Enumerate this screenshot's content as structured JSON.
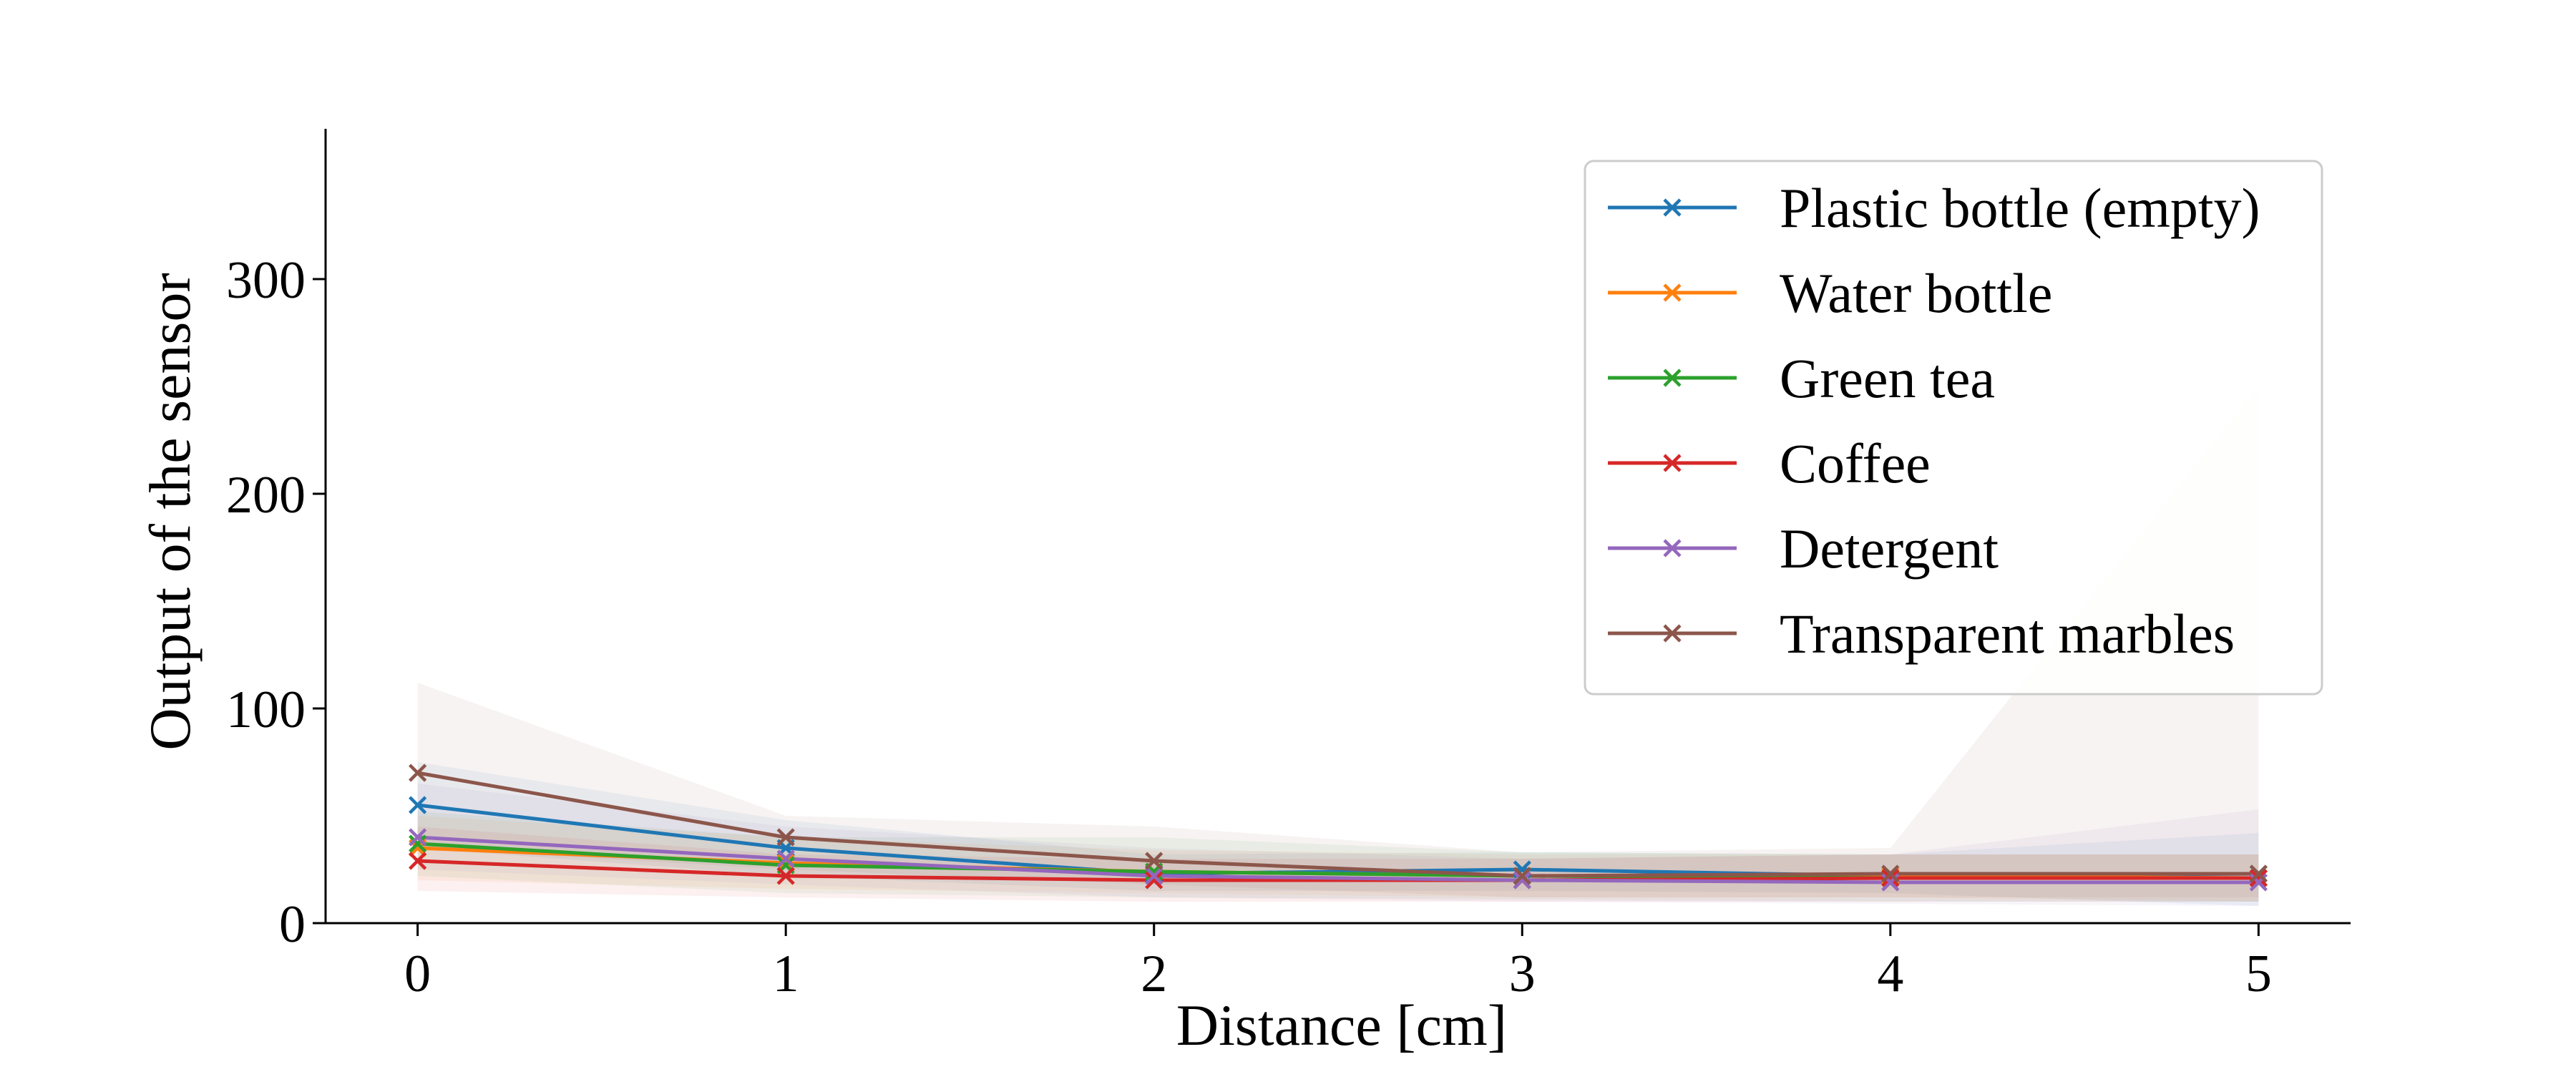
{
  "chart_data": {
    "type": "line",
    "title": "",
    "xlabel": "Distance [cm]",
    "ylabel": "Output of the sensor",
    "x": [
      0,
      1,
      2,
      3,
      4,
      5
    ],
    "xticks": [
      "0",
      "1",
      "2",
      "3",
      "4",
      "5"
    ],
    "xlim": [
      -0.25,
      5.25
    ],
    "yticks": [
      "0",
      "100",
      "200",
      "300"
    ],
    "ylim": [
      0,
      370
    ],
    "legend": "top-right",
    "grid": false,
    "series": [
      {
        "name": "Plastic bottle (empty)",
        "color": "#1f77b4",
        "values": [
          55,
          35,
          23,
          25,
          22,
          23
        ],
        "lower": [
          35,
          22,
          15,
          15,
          14,
          8
        ],
        "upper": [
          75,
          48,
          32,
          33,
          32,
          42
        ]
      },
      {
        "name": "Water bottle",
        "color": "#ff7f0e",
        "values": [
          35,
          28,
          24,
          22,
          22,
          21
        ],
        "lower": [
          20,
          16,
          14,
          12,
          12,
          10
        ],
        "upper": [
          50,
          40,
          34,
          32,
          32,
          32
        ]
      },
      {
        "name": "Green tea",
        "color": "#2ca02c",
        "values": [
          37,
          27,
          24,
          22,
          21,
          21
        ],
        "lower": [
          22,
          14,
          12,
          11,
          10,
          10
        ],
        "upper": [
          52,
          40,
          40,
          33,
          32,
          32
        ]
      },
      {
        "name": "Coffee",
        "color": "#d62728",
        "values": [
          29,
          22,
          20,
          20,
          21,
          21
        ],
        "lower": [
          15,
          12,
          10,
          10,
          10,
          10
        ],
        "upper": [
          45,
          32,
          30,
          30,
          32,
          32
        ]
      },
      {
        "name": "Detergent",
        "color": "#9467bd",
        "values": [
          40,
          30,
          22,
          20,
          19,
          19
        ],
        "lower": [
          25,
          18,
          12,
          10,
          9,
          8
        ],
        "upper": [
          65,
          45,
          35,
          30,
          32,
          53
        ]
      },
      {
        "name": "Transparent marbles",
        "color": "#8c564b",
        "values": [
          70,
          40,
          29,
          22,
          23,
          23
        ],
        "lower": [
          35,
          25,
          18,
          12,
          12,
          12
        ],
        "upper": [
          112,
          50,
          45,
          33,
          35,
          250
        ]
      }
    ]
  }
}
